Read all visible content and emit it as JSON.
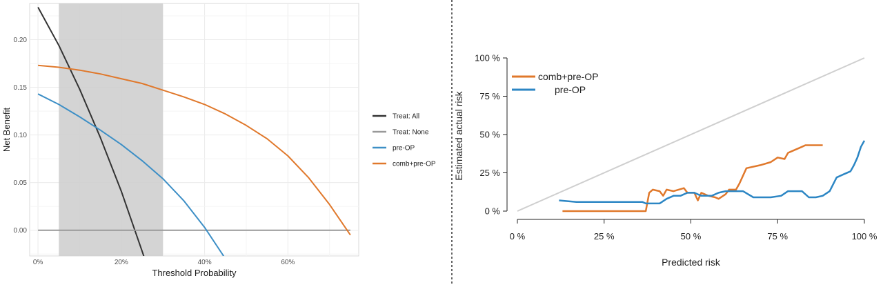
{
  "chart_data": [
    {
      "type": "line",
      "title": "",
      "xlabel": "Threshold Probability",
      "ylabel": "Net Benefit",
      "xlim": [
        -0.02,
        0.77
      ],
      "ylim": [
        -0.027,
        0.238
      ],
      "grid": true,
      "legend_position": "right",
      "x_ticks": [
        0,
        0.2,
        0.4,
        0.6
      ],
      "x_tick_labels": [
        "0%",
        "20%",
        "40%",
        "60%"
      ],
      "y_ticks": [
        0,
        0.05,
        0.1,
        0.15,
        0.2
      ],
      "y_tick_labels": [
        "0.00",
        "0.05",
        "0.10",
        "0.15",
        "0.20"
      ],
      "shaded_region": {
        "x": [
          0.05,
          0.3
        ],
        "color": "#cccccc"
      },
      "legend": [
        "Treat: All",
        "Treat: None",
        "pre-OP",
        "comb+pre-OP"
      ],
      "series": [
        {
          "name": "Treat: All",
          "color": "#333333",
          "x": [
            0,
            0.05,
            0.1,
            0.15,
            0.2,
            0.25,
            0.26
          ],
          "y": [
            0.234,
            0.194,
            0.148,
            0.097,
            0.041,
            -0.022,
            -0.035
          ]
        },
        {
          "name": "Treat: None",
          "color": "#999999",
          "x": [
            0,
            0.75
          ],
          "y": [
            0,
            0
          ]
        },
        {
          "name": "pre-OP",
          "color": "#3d8fc6",
          "x": [
            0,
            0.05,
            0.1,
            0.15,
            0.2,
            0.25,
            0.3,
            0.35,
            0.4,
            0.45,
            0.46
          ],
          "y": [
            0.143,
            0.132,
            0.119,
            0.105,
            0.09,
            0.073,
            0.054,
            0.031,
            0.003,
            -0.03,
            -0.036
          ]
        },
        {
          "name": "comb+pre-OP",
          "color": "#e0782b",
          "x": [
            0,
            0.05,
            0.1,
            0.15,
            0.2,
            0.25,
            0.3,
            0.35,
            0.4,
            0.45,
            0.5,
            0.55,
            0.6,
            0.65,
            0.7,
            0.75
          ],
          "y": [
            0.173,
            0.171,
            0.168,
            0.164,
            0.159,
            0.154,
            0.147,
            0.14,
            0.132,
            0.122,
            0.11,
            0.096,
            0.078,
            0.055,
            0.027,
            -0.005
          ]
        }
      ]
    },
    {
      "type": "line",
      "title": "",
      "xlabel": "Predicted risk",
      "ylabel": "Estimated actual risk",
      "xlim": [
        0,
        1
      ],
      "ylim": [
        0,
        1
      ],
      "grid": false,
      "legend_position": "top-left",
      "x_ticks": [
        0,
        0.25,
        0.5,
        0.75,
        1
      ],
      "x_tick_labels": [
        "0 %",
        "25 %",
        "50 %",
        "75 %",
        "100 %"
      ],
      "y_ticks": [
        0,
        0.25,
        0.5,
        0.75,
        1
      ],
      "y_tick_labels": [
        "0 %",
        "25 %",
        "50 %",
        "75 %",
        "100 %"
      ],
      "reference_line": {
        "x": [
          0,
          1
        ],
        "y": [
          0,
          1
        ],
        "color": "#cfcfcf"
      },
      "legend": [
        "comb+pre-OP",
        "pre-OP"
      ],
      "series": [
        {
          "name": "comb+pre-OP",
          "color": "#e0782b",
          "x": [
            0.13,
            0.37,
            0.38,
            0.39,
            0.41,
            0.42,
            0.43,
            0.45,
            0.48,
            0.49,
            0.51,
            0.52,
            0.53,
            0.55,
            0.57,
            0.58,
            0.6,
            0.61,
            0.63,
            0.64,
            0.66,
            0.7,
            0.73,
            0.75,
            0.77,
            0.78,
            0.8,
            0.82,
            0.83,
            0.85,
            0.88
          ],
          "y": [
            0,
            0,
            0.12,
            0.14,
            0.13,
            0.1,
            0.14,
            0.13,
            0.15,
            0.12,
            0.12,
            0.07,
            0.12,
            0.1,
            0.09,
            0.08,
            0.11,
            0.14,
            0.14,
            0.18,
            0.28,
            0.3,
            0.32,
            0.35,
            0.34,
            0.38,
            0.4,
            0.42,
            0.43,
            0.43,
            0.43
          ]
        },
        {
          "name": "pre-OP",
          "color": "#2c86c4",
          "x": [
            0.12,
            0.17,
            0.36,
            0.37,
            0.4,
            0.41,
            0.43,
            0.45,
            0.47,
            0.49,
            0.51,
            0.53,
            0.56,
            0.58,
            0.6,
            0.62,
            0.65,
            0.68,
            0.7,
            0.73,
            0.76,
            0.78,
            0.8,
            0.82,
            0.84,
            0.86,
            0.88,
            0.9,
            0.92,
            0.94,
            0.96,
            0.97,
            0.98,
            0.99,
            1.0
          ],
          "y": [
            0.07,
            0.06,
            0.06,
            0.05,
            0.05,
            0.05,
            0.08,
            0.1,
            0.1,
            0.12,
            0.12,
            0.1,
            0.1,
            0.12,
            0.13,
            0.13,
            0.13,
            0.09,
            0.09,
            0.09,
            0.1,
            0.13,
            0.13,
            0.13,
            0.09,
            0.09,
            0.1,
            0.13,
            0.22,
            0.24,
            0.26,
            0.3,
            0.35,
            0.42,
            0.46
          ]
        }
      ]
    }
  ]
}
